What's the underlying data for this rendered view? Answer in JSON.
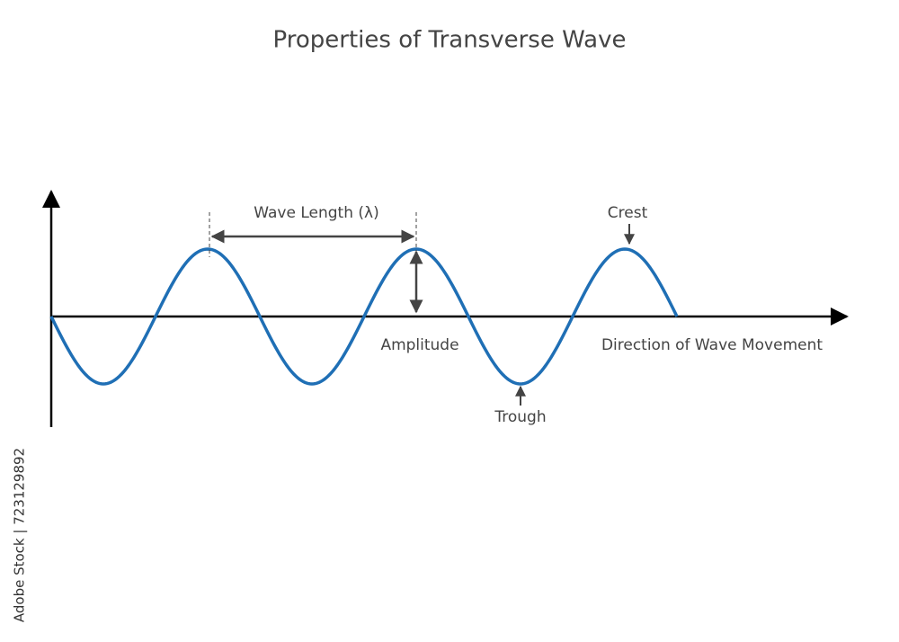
{
  "title": "Properties of Transverse Wave",
  "labels": {
    "wavelength": "Wave Length (λ)",
    "crest": "Crest",
    "amplitude": "Amplitude",
    "direction": "Direction of Wave Movement",
    "trough": "Trough"
  },
  "watermark": "Adobe Stock | 723129892"
}
